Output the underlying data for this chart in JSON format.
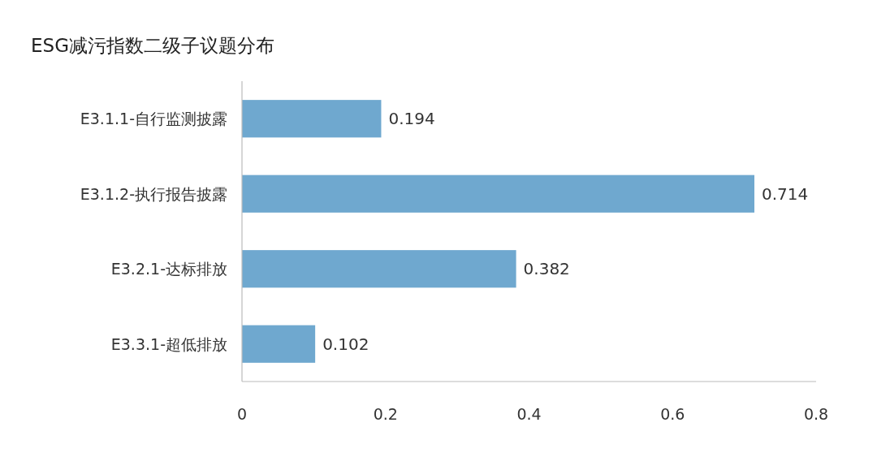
{
  "chart_data": {
    "type": "bar",
    "orientation": "horizontal",
    "title": "ESG减污指数二级子议题分布",
    "categories": [
      "E3.1.1-自行监测披露",
      "E3.1.2-执行报告披露",
      "E3.2.1-达标排放",
      "E3.3.1-超低排放"
    ],
    "values": [
      0.194,
      0.714,
      0.382,
      0.102
    ],
    "color": "#6fa8cf",
    "xlim": [
      0,
      0.8
    ],
    "xticks": [
      0,
      0.2,
      0.4,
      0.6,
      0.8
    ],
    "data_labels": true
  }
}
